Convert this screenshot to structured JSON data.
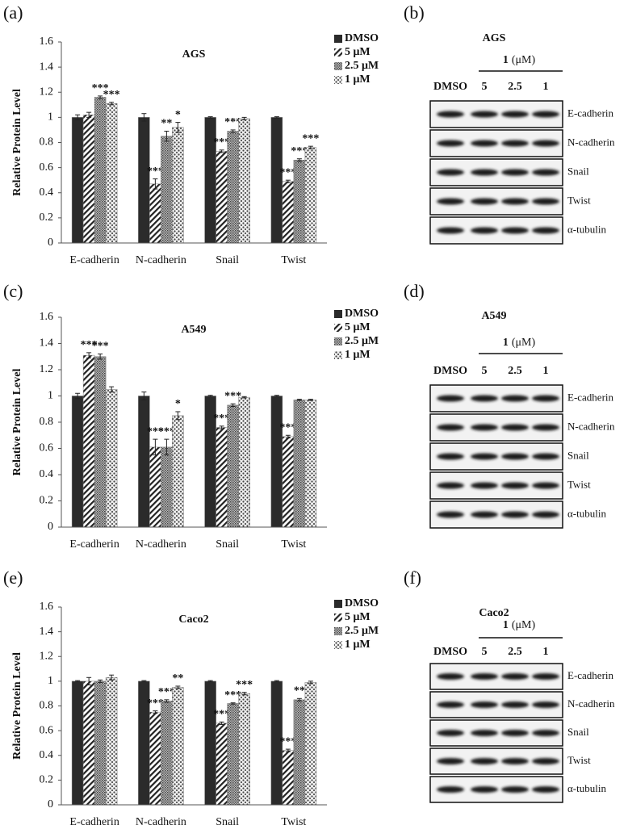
{
  "chart_data": [
    {
      "type": "bar",
      "panel_label": "(a)",
      "title": "AGS",
      "y_label": "Relative Protein Level",
      "categories": [
        "E-cadherin",
        "N-cadherin",
        "Snail",
        "Twist"
      ],
      "ylim": [
        0,
        1.6
      ],
      "yticks": [
        0,
        0.2,
        0.4,
        0.6,
        0.8,
        1,
        1.2,
        1.4,
        1.6
      ],
      "series": [
        {
          "name": "DMSO",
          "fill": "#2b2b2b",
          "values": [
            1.0,
            1.0,
            1.0,
            1.0
          ],
          "errors": [
            0.02,
            0.03,
            0.005,
            0.005
          ],
          "annotations": [
            null,
            null,
            null,
            null
          ]
        },
        {
          "name": "5 μM",
          "fill": "hatch",
          "values": [
            1.02,
            0.47,
            0.73,
            0.49
          ],
          "errors": [
            0.02,
            0.04,
            0.01,
            0.01
          ],
          "annotations": [
            null,
            "***",
            "***",
            "***"
          ]
        },
        {
          "name": "2.5 μM",
          "fill": "grid",
          "values": [
            1.16,
            0.85,
            0.89,
            0.66
          ],
          "errors": [
            0.01,
            0.04,
            0.01,
            0.01
          ],
          "annotations": [
            "***",
            "**",
            "***",
            "***"
          ]
        },
        {
          "name": "1 μM",
          "fill": "dots",
          "values": [
            1.11,
            0.92,
            0.99,
            0.76
          ],
          "errors": [
            0.01,
            0.04,
            0.01,
            0.01
          ],
          "annotations": [
            "***",
            "*",
            null,
            "***"
          ]
        }
      ]
    },
    {
      "type": "bar",
      "panel_label": "(c)",
      "title": "A549",
      "y_label": "Relative Protein Level",
      "categories": [
        "E-cadherin",
        "N-cadherin",
        "Snail",
        "Twist"
      ],
      "ylim": [
        0,
        1.6
      ],
      "yticks": [
        0,
        0.2,
        0.4,
        0.6,
        0.8,
        1,
        1.2,
        1.4,
        1.6
      ],
      "series": [
        {
          "name": "DMSO",
          "fill": "#2b2b2b",
          "values": [
            1.0,
            1.0,
            1.0,
            1.0
          ],
          "errors": [
            0.02,
            0.03,
            0.005,
            0.005
          ],
          "annotations": [
            null,
            null,
            null,
            null
          ]
        },
        {
          "name": "5 μM",
          "fill": "hatch",
          "values": [
            1.31,
            0.61,
            0.76,
            0.69
          ],
          "errors": [
            0.02,
            0.06,
            0.01,
            0.01
          ],
          "annotations": [
            "***",
            "***",
            "***",
            "***"
          ]
        },
        {
          "name": "2.5 μM",
          "fill": "grid",
          "values": [
            1.3,
            0.61,
            0.93,
            0.97
          ],
          "errors": [
            0.02,
            0.06,
            0.01,
            0.005
          ],
          "annotations": [
            "***",
            "***",
            "***",
            null
          ]
        },
        {
          "name": "1 μM",
          "fill": "dots",
          "values": [
            1.05,
            0.85,
            0.99,
            0.97
          ],
          "errors": [
            0.02,
            0.03,
            0.005,
            0.005
          ],
          "annotations": [
            null,
            "*",
            null,
            null
          ]
        }
      ]
    },
    {
      "type": "bar",
      "panel_label": "(e)",
      "title": "Caco2",
      "y_label": "Relative Protein Level",
      "categories": [
        "E-cadherin",
        "N-cadherin",
        "Snail",
        "Twist"
      ],
      "ylim": [
        0,
        1.6
      ],
      "yticks": [
        0,
        0.2,
        0.4,
        0.6,
        0.8,
        1,
        1.2,
        1.4,
        1.6
      ],
      "series": [
        {
          "name": "DMSO",
          "fill": "#2b2b2b",
          "values": [
            1.0,
            1.0,
            1.0,
            1.0
          ],
          "errors": [
            0.005,
            0.005,
            0.005,
            0.005
          ],
          "annotations": [
            null,
            null,
            null,
            null
          ]
        },
        {
          "name": "5 μM",
          "fill": "hatch",
          "values": [
            1.0,
            0.75,
            0.66,
            0.44
          ],
          "errors": [
            0.03,
            0.01,
            0.01,
            0.01
          ],
          "annotations": [
            null,
            "***",
            "***",
            "***"
          ]
        },
        {
          "name": "2.5 μM",
          "fill": "grid",
          "values": [
            1.0,
            0.84,
            0.82,
            0.85
          ],
          "errors": [
            0.01,
            0.01,
            0.005,
            0.01
          ],
          "annotations": [
            null,
            "***",
            "***",
            "**"
          ]
        },
        {
          "name": "1 μM",
          "fill": "dots",
          "values": [
            1.03,
            0.95,
            0.9,
            0.99
          ],
          "errors": [
            0.02,
            0.01,
            0.01,
            0.01
          ],
          "annotations": [
            null,
            "**",
            "***",
            null
          ]
        }
      ]
    }
  ],
  "blots": [
    {
      "panel_label": "(b)",
      "title": "AGS",
      "compound": "1",
      "unit": "(μM)",
      "lanes": [
        "DMSO",
        "5",
        "2.5",
        "1"
      ],
      "rows": [
        "E-cadherin",
        "N-cadherin",
        "Snail",
        "Twist",
        "α-tubulin"
      ]
    },
    {
      "panel_label": "(d)",
      "title": "A549",
      "compound": "1",
      "unit": "(μM)",
      "lanes": [
        "DMSO",
        "5",
        "2.5",
        "1"
      ],
      "rows": [
        "E-cadherin",
        "N-cadherin",
        "Snail",
        "Twist",
        "α-tubulin"
      ]
    },
    {
      "panel_label": "(f)",
      "title": "Caco2",
      "compound": "1",
      "unit": "(μM)",
      "lanes": [
        "DMSO",
        "5",
        "2.5",
        "1"
      ],
      "rows": [
        "E-cadherin",
        "N-cadherin",
        "Snail",
        "Twist",
        "α-tubulin"
      ]
    }
  ]
}
